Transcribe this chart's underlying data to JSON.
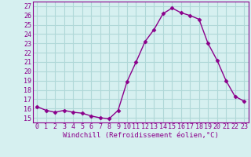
{
  "x": [
    0,
    1,
    2,
    3,
    4,
    5,
    6,
    7,
    8,
    9,
    10,
    11,
    12,
    13,
    14,
    15,
    16,
    17,
    18,
    19,
    20,
    21,
    22,
    23
  ],
  "y": [
    16.2,
    15.8,
    15.6,
    15.8,
    15.6,
    15.5,
    15.2,
    15.0,
    14.9,
    15.8,
    18.9,
    21.0,
    23.2,
    24.5,
    26.2,
    26.8,
    26.3,
    26.0,
    25.6,
    23.0,
    21.2,
    19.0,
    17.3,
    16.8
  ],
  "line_color": "#8B008B",
  "marker": "D",
  "marker_size": 2.5,
  "bg_color": "#d6f0f0",
  "grid_color": "#b0d8d8",
  "xlabel": "Windchill (Refroidissement éolien,°C)",
  "ylabel": "",
  "xlim": [
    -0.5,
    23.5
  ],
  "ylim": [
    14.5,
    27.5
  ],
  "yticks": [
    15,
    16,
    17,
    18,
    19,
    20,
    21,
    22,
    23,
    24,
    25,
    26,
    27
  ],
  "xticks": [
    0,
    1,
    2,
    3,
    4,
    5,
    6,
    7,
    8,
    9,
    10,
    11,
    12,
    13,
    14,
    15,
    16,
    17,
    18,
    19,
    20,
    21,
    22,
    23
  ],
  "axis_label_color": "#8B008B",
  "tick_label_color": "#8B008B",
  "xlabel_fontsize": 6.5,
  "tick_fontsize": 6.0,
  "line_width": 1.0,
  "spine_color": "#8B008B"
}
